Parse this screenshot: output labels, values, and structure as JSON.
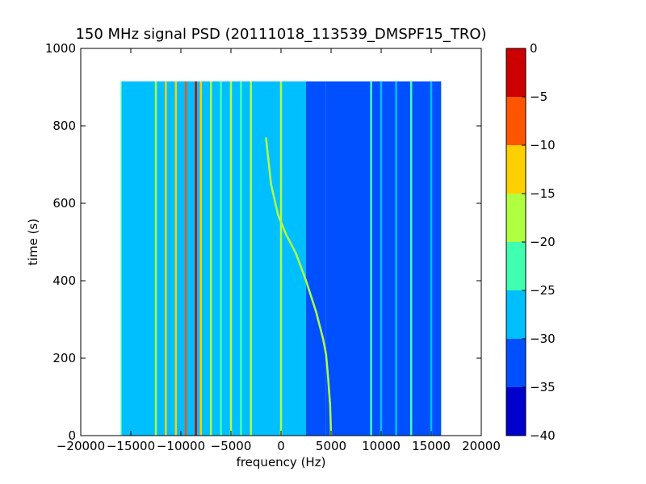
{
  "chart_data": {
    "type": "heatmap",
    "title": "150 MHz signal PSD (20111018_113539_DMSPF15_TRO)",
    "xlabel": "frequency (Hz)",
    "ylabel": "time (s)",
    "xlim": [
      -20000,
      20000
    ],
    "ylim": [
      0,
      1000
    ],
    "xticks": [
      -20000,
      -15000,
      -10000,
      -5000,
      0,
      5000,
      10000,
      15000,
      20000
    ],
    "xtick_labels": [
      "−20000",
      "−15000",
      "−10000",
      "−5000",
      "0",
      "5000",
      "10000",
      "15000",
      "20000"
    ],
    "yticks": [
      0,
      200,
      400,
      600,
      800,
      1000
    ],
    "ytick_labels": [
      "0",
      "200",
      "400",
      "600",
      "800",
      "1000"
    ],
    "data_extent": {
      "freq": [
        -16000,
        16000
      ],
      "time": [
        0,
        915
      ]
    },
    "colorbar": {
      "range": [
        -40,
        0
      ],
      "ticks": [
        0,
        -5,
        -10,
        -15,
        -20,
        -25,
        -30,
        -35,
        -40
      ],
      "tick_labels": [
        "0",
        "−5",
        "−10",
        "−15",
        "−20",
        "−25",
        "−30",
        "−35",
        "−40"
      ],
      "levels": [
        {
          "from": -40,
          "to": -35,
          "color": "#0000cc"
        },
        {
          "from": -35,
          "to": -30,
          "color": "#0050ff"
        },
        {
          "from": -30,
          "to": -25,
          "color": "#00bfff"
        },
        {
          "from": -25,
          "to": -20,
          "color": "#40ffb0"
        },
        {
          "from": -20,
          "to": -15,
          "color": "#b0ff40"
        },
        {
          "from": -15,
          "to": -10,
          "color": "#ffd000"
        },
        {
          "from": -10,
          "to": -5,
          "color": "#ff5500"
        },
        {
          "from": -5,
          "to": 0,
          "color": "#cc0000"
        }
      ]
    },
    "background_regions": [
      {
        "freq": [
          -16000,
          2500
        ],
        "level": -27.5
      },
      {
        "freq": [
          2500,
          4500
        ],
        "level": -30
      },
      {
        "freq": [
          4500,
          16000
        ],
        "level": -32.5
      }
    ],
    "carriers": [
      {
        "freq": -16000,
        "level": -22.5
      },
      {
        "freq": -13500,
        "level": -27.5
      },
      {
        "freq": -12500,
        "level": -17.5
      },
      {
        "freq": -11500,
        "level": -12.5
      },
      {
        "freq": -10500,
        "level": -12.5
      },
      {
        "freq": -9500,
        "level": -7.5
      },
      {
        "freq": -8500,
        "level": -2.5
      },
      {
        "freq": -8000,
        "level": -12.5
      },
      {
        "freq": -7000,
        "level": -17.5
      },
      {
        "freq": -6000,
        "level": -22.5
      },
      {
        "freq": -5000,
        "level": -17.5
      },
      {
        "freq": -4000,
        "level": -22.5
      },
      {
        "freq": -3000,
        "level": -17.5
      },
      {
        "freq": 0,
        "level": -17.5
      },
      {
        "freq": 9000,
        "level": -22.5
      },
      {
        "freq": 10000,
        "level": -27.5
      },
      {
        "freq": 11500,
        "level": -27.5
      },
      {
        "freq": 13000,
        "level": -22.5
      },
      {
        "freq": 15000,
        "level": -27.5
      }
    ],
    "doppler_trace": {
      "level": -17.5,
      "points": [
        [
          -1500,
          770
        ],
        [
          -1000,
          650
        ],
        [
          -300,
          570
        ],
        [
          500,
          520
        ],
        [
          1500,
          470
        ],
        [
          2500,
          400
        ],
        [
          3500,
          320
        ],
        [
          4200,
          250
        ],
        [
          4500,
          210
        ],
        [
          4700,
          150
        ],
        [
          4900,
          80
        ],
        [
          5000,
          0
        ]
      ]
    }
  }
}
